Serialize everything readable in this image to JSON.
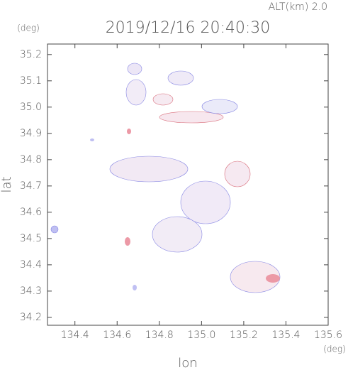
{
  "chart_data": {
    "type": "map",
    "title": "2019/12/16 20:40:30",
    "subtitle": "ALT(km) 2.0",
    "x_label": "lon",
    "y_label": "lat",
    "x_unit": "(deg)",
    "y_unit": "(deg)",
    "xlim": [
      134.27,
      135.6
    ],
    "xticks": [
      134.4,
      134.6,
      134.8,
      {
        "value": 135,
        "label": "135.0"
      },
      135.2,
      135.4,
      135.6
    ],
    "ylim": [
      34.17,
      35.24
    ],
    "yticks": [
      34.2,
      34.3,
      34.4,
      34.5,
      34.6,
      34.7,
      34.8,
      34.9,
      {
        "value": 35,
        "label": "35.0"
      },
      35.1,
      35.2
    ]
  }
}
